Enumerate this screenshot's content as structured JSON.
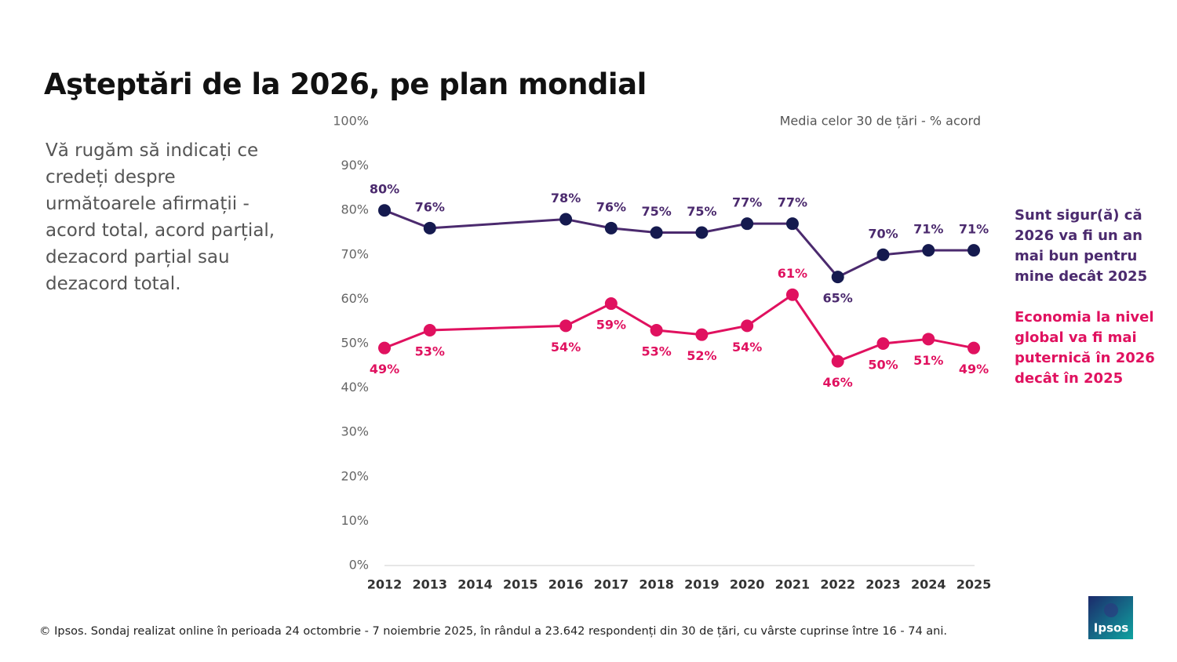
{
  "title": "Aşteptări de la 2026, pe plan mondial",
  "question": "Vă rugăm să indicați ce credeți despre următoarele afirmații - acord total, acord parțial, dezacord parțial sau dezacord total.",
  "note": "Media celor 30 de țări - % acord",
  "footer": "© Ipsos. Sondaj realizat online în perioada 24 octombrie - 7 noiembrie 2025, în rândul a 23.642 respondenți din 30 de țări, cu vârste cuprinse între 16 - 74 ani.",
  "logo": "Ipsos",
  "chart_data": {
    "type": "line",
    "x": [
      2012,
      2013,
      2016,
      2017,
      2018,
      2019,
      2020,
      2021,
      2022,
      2023,
      2024,
      2025
    ],
    "xlim": [
      2012,
      2025
    ],
    "xticks": [
      2012,
      2013,
      2014,
      2015,
      2016,
      2017,
      2018,
      2019,
      2020,
      2021,
      2022,
      2023,
      2024,
      2025
    ],
    "ylim": [
      0,
      100
    ],
    "yticks": [
      {
        "value": 0,
        "label": "0%"
      },
      {
        "value": 10,
        "label": "10%"
      },
      {
        "value": 20,
        "label": "20%"
      },
      {
        "value": 30,
        "label": "30%"
      },
      {
        "value": 40,
        "label": "40%"
      },
      {
        "value": 50,
        "label": "50%"
      },
      {
        "value": 60,
        "label": "60%"
      },
      {
        "value": 70,
        "label": "70%"
      },
      {
        "value": 80,
        "label": "80%"
      },
      {
        "value": 90,
        "label": "90%"
      },
      {
        "value": 100,
        "label": "100%"
      }
    ],
    "grid": false,
    "series": [
      {
        "name": "Sunt sigur(ă) că 2026 va fi un an mai bun pentru mine decât 2025",
        "color": "#4b2a6e",
        "marker_color": "#151a4f",
        "values": [
          80,
          76,
          78,
          76,
          75,
          75,
          77,
          77,
          65,
          70,
          71,
          71
        ],
        "value_labels": [
          "80%",
          "76%",
          "78%",
          "76%",
          "75%",
          "75%",
          "77%",
          "77%",
          "65%",
          "70%",
          "71%",
          "71%"
        ]
      },
      {
        "name": "Economia la nivel global va fi mai puternică în 2026 decât în 2025",
        "color": "#e0115f",
        "marker_color": "#e0115f",
        "values": [
          49,
          53,
          54,
          59,
          53,
          52,
          54,
          61,
          46,
          50,
          51,
          49
        ],
        "value_labels": [
          "49%",
          "53%",
          "54%",
          "59%",
          "53%",
          "52%",
          "54%",
          "61%",
          "46%",
          "50%",
          "51%",
          "49%"
        ]
      }
    ]
  }
}
